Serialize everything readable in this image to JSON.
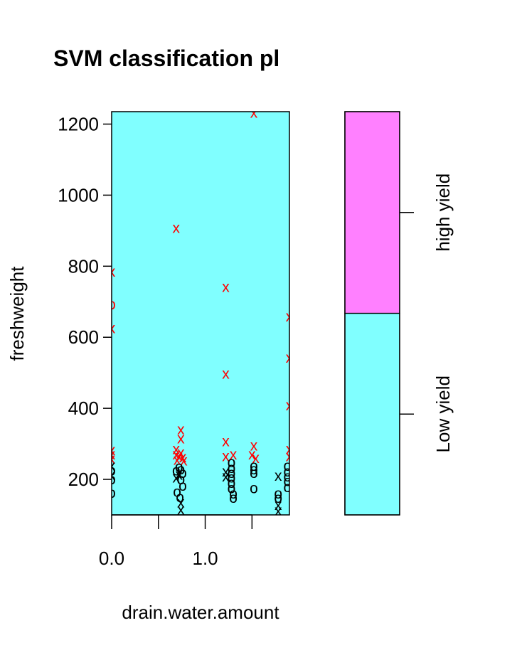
{
  "chart_data": {
    "type": "scatter",
    "title": "SVM classification pl",
    "xlabel": "drain.water.amount",
    "ylabel": "freshweight",
    "xlim": [
      0,
      1.9
    ],
    "ylim": [
      100,
      1235
    ],
    "xticks": [
      {
        "value": 0.0,
        "label": "0.0"
      },
      {
        "value": 0.5,
        "label": ""
      },
      {
        "value": 1.0,
        "label": "1.0"
      },
      {
        "value": 1.5,
        "label": ""
      }
    ],
    "yticks": [
      {
        "value": 200,
        "label": "200"
      },
      {
        "value": 400,
        "label": "400"
      },
      {
        "value": 600,
        "label": "600"
      },
      {
        "value": 800,
        "label": "800"
      },
      {
        "value": 1000,
        "label": "1000"
      },
      {
        "value": 1200,
        "label": "1200"
      }
    ],
    "background_color": "#80FFFF",
    "colorbar": {
      "levels": [
        {
          "label": "Low yield",
          "color": "#80FFFF",
          "from": 0,
          "to": 0.5
        },
        {
          "label": "high yield",
          "color": "#FF80FF",
          "from": 0.5,
          "to": 1
        }
      ]
    },
    "series": [
      {
        "name": "high yield",
        "color": "#FF0000",
        "points": [
          {
            "x": 0.0,
            "y": 785,
            "m": "x"
          },
          {
            "x": 0.0,
            "y": 693,
            "m": "o"
          },
          {
            "x": 0.0,
            "y": 625,
            "m": "x"
          },
          {
            "x": 0.0,
            "y": 282,
            "m": "x"
          },
          {
            "x": 0.0,
            "y": 270,
            "m": "x"
          },
          {
            "x": 0.0,
            "y": 258,
            "m": "x"
          },
          {
            "x": 0.69,
            "y": 908,
            "m": "x"
          },
          {
            "x": 0.74,
            "y": 340,
            "m": "x"
          },
          {
            "x": 0.74,
            "y": 315,
            "m": "x"
          },
          {
            "x": 0.69,
            "y": 285,
            "m": "x"
          },
          {
            "x": 0.69,
            "y": 270,
            "m": "x"
          },
          {
            "x": 0.72,
            "y": 265,
            "m": "x"
          },
          {
            "x": 0.74,
            "y": 275,
            "m": "x"
          },
          {
            "x": 0.76,
            "y": 262,
            "m": "x"
          },
          {
            "x": 0.7,
            "y": 255,
            "m": "x"
          },
          {
            "x": 0.77,
            "y": 253,
            "m": "x"
          },
          {
            "x": 1.22,
            "y": 742,
            "m": "x"
          },
          {
            "x": 1.22,
            "y": 497,
            "m": "x"
          },
          {
            "x": 1.22,
            "y": 307,
            "m": "x"
          },
          {
            "x": 1.22,
            "y": 265,
            "m": "x"
          },
          {
            "x": 1.3,
            "y": 270,
            "m": "x"
          },
          {
            "x": 1.52,
            "y": 1232,
            "m": "x"
          },
          {
            "x": 1.52,
            "y": 295,
            "m": "x"
          },
          {
            "x": 1.5,
            "y": 270,
            "m": "x"
          },
          {
            "x": 1.54,
            "y": 260,
            "m": "x"
          },
          {
            "x": 1.9,
            "y": 658,
            "m": "x"
          },
          {
            "x": 1.9,
            "y": 542,
            "m": "x"
          },
          {
            "x": 1.9,
            "y": 408,
            "m": "x"
          },
          {
            "x": 1.9,
            "y": 285,
            "m": "x"
          },
          {
            "x": 1.9,
            "y": 265,
            "m": "x"
          }
        ]
      },
      {
        "name": "Low yield",
        "color": "#000000",
        "points": [
          {
            "x": 0.0,
            "y": 238,
            "m": "x"
          },
          {
            "x": 0.0,
            "y": 225,
            "m": "o"
          },
          {
            "x": 0.0,
            "y": 212,
            "m": "x"
          },
          {
            "x": 0.0,
            "y": 200,
            "m": "o"
          },
          {
            "x": 0.0,
            "y": 162,
            "m": "o"
          },
          {
            "x": 0.69,
            "y": 225,
            "m": "o"
          },
          {
            "x": 0.69,
            "y": 205,
            "m": "x"
          },
          {
            "x": 0.72,
            "y": 235,
            "m": "o"
          },
          {
            "x": 0.72,
            "y": 213,
            "m": "x"
          },
          {
            "x": 0.74,
            "y": 228,
            "m": "o"
          },
          {
            "x": 0.74,
            "y": 200,
            "m": "o"
          },
          {
            "x": 0.76,
            "y": 218,
            "m": "o"
          },
          {
            "x": 0.76,
            "y": 182,
            "m": "o"
          },
          {
            "x": 0.7,
            "y": 165,
            "m": "o"
          },
          {
            "x": 0.73,
            "y": 150,
            "m": "o"
          },
          {
            "x": 0.74,
            "y": 135,
            "m": "x"
          },
          {
            "x": 0.74,
            "y": 115,
            "m": "x"
          },
          {
            "x": 1.22,
            "y": 222,
            "m": "x"
          },
          {
            "x": 1.22,
            "y": 208,
            "m": "x"
          },
          {
            "x": 1.28,
            "y": 248,
            "m": "o"
          },
          {
            "x": 1.28,
            "y": 232,
            "m": "o"
          },
          {
            "x": 1.28,
            "y": 218,
            "m": "o"
          },
          {
            "x": 1.28,
            "y": 205,
            "m": "o"
          },
          {
            "x": 1.28,
            "y": 190,
            "m": "o"
          },
          {
            "x": 1.28,
            "y": 175,
            "m": "o"
          },
          {
            "x": 1.3,
            "y": 160,
            "m": "o"
          },
          {
            "x": 1.3,
            "y": 148,
            "m": "o"
          },
          {
            "x": 1.52,
            "y": 238,
            "m": "o"
          },
          {
            "x": 1.52,
            "y": 228,
            "m": "o"
          },
          {
            "x": 1.52,
            "y": 218,
            "m": "o"
          },
          {
            "x": 1.52,
            "y": 175,
            "m": "o"
          },
          {
            "x": 1.78,
            "y": 210,
            "m": "x"
          },
          {
            "x": 1.78,
            "y": 160,
            "m": "o"
          },
          {
            "x": 1.78,
            "y": 148,
            "m": "o"
          },
          {
            "x": 1.78,
            "y": 128,
            "m": "x"
          },
          {
            "x": 1.78,
            "y": 112,
            "m": "x"
          },
          {
            "x": 1.88,
            "y": 238,
            "m": "o"
          },
          {
            "x": 1.88,
            "y": 222,
            "m": "o"
          },
          {
            "x": 1.88,
            "y": 208,
            "m": "o"
          },
          {
            "x": 1.88,
            "y": 195,
            "m": "o"
          },
          {
            "x": 1.88,
            "y": 178,
            "m": "o"
          }
        ]
      }
    ]
  }
}
